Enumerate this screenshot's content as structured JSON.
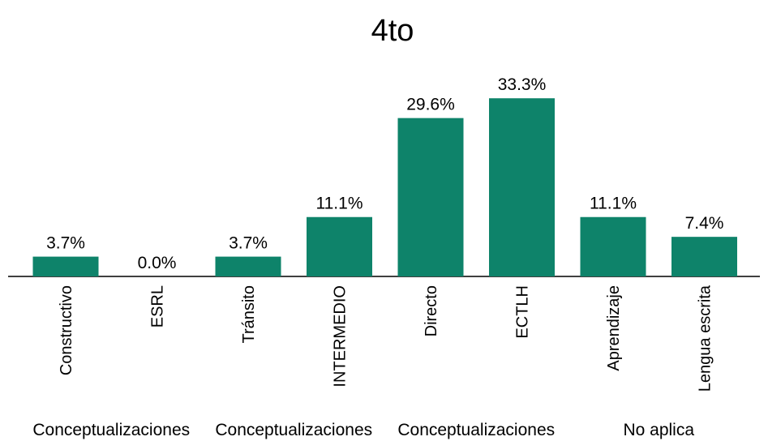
{
  "chart_data": {
    "type": "bar",
    "title": "4to",
    "groups": [
      {
        "label": "Conceptualizaciones",
        "categories": [
          "Constructivo",
          "ESRL"
        ]
      },
      {
        "label": "Conceptualizaciones",
        "categories": [
          "Tránsito",
          "INTERMEDIO"
        ]
      },
      {
        "label": "Conceptualizaciones",
        "categories": [
          "Directo",
          "ECTLH"
        ]
      },
      {
        "label": "No aplica",
        "categories": [
          "Aprendizaje",
          "Lengua escrita"
        ]
      }
    ],
    "values": [
      3.7,
      0.0,
      3.7,
      11.1,
      29.6,
      33.3,
      11.1,
      7.4
    ],
    "value_labels": [
      "3.7%",
      "0.0%",
      "3.7%",
      "11.1%",
      "29.6%",
      "33.3%",
      "11.1%",
      "7.4%"
    ],
    "color": "#0e836a"
  }
}
